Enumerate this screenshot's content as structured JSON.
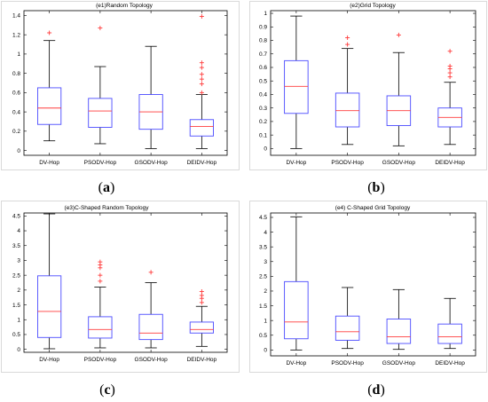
{
  "colors": {
    "box": "#4b4bff",
    "median": "#ff3b3b",
    "whisker": "#000000",
    "outlier": "#ff3b3b"
  },
  "captions": [
    "(a)",
    "(b)",
    "(c)",
    "(d)"
  ],
  "chart_data": [
    {
      "type": "box",
      "title": "(e1)Random Topology",
      "ylim": [
        -0.05,
        1.45
      ],
      "yticks": [
        0,
        0.2,
        0.4,
        0.6,
        0.8,
        1,
        1.2,
        1.4
      ],
      "categories": [
        "DV-Hop",
        "PSODV-Hop",
        "GSODV-Hop",
        "DEIDV-Hop"
      ],
      "boxes": [
        {
          "min": 0.1,
          "q1": 0.27,
          "median": 0.44,
          "q3": 0.65,
          "max": 1.14,
          "outliers": [
            1.22
          ]
        },
        {
          "min": 0.07,
          "q1": 0.24,
          "median": 0.41,
          "q3": 0.54,
          "max": 0.87,
          "outliers": [
            1.27
          ]
        },
        {
          "min": 0.02,
          "q1": 0.22,
          "median": 0.4,
          "q3": 0.58,
          "max": 1.08,
          "outliers": []
        },
        {
          "min": 0.02,
          "q1": 0.15,
          "median": 0.25,
          "q3": 0.32,
          "max": 0.58,
          "outliers": [
            0.6,
            0.69,
            0.74,
            0.79,
            0.86,
            0.91,
            1.39
          ]
        }
      ]
    },
    {
      "type": "box",
      "title": "(e2)Grid Topology",
      "ylim": [
        -0.05,
        1.02
      ],
      "yticks": [
        0,
        0.1,
        0.2,
        0.3,
        0.4,
        0.5,
        0.6,
        0.7,
        0.8,
        0.9,
        1
      ],
      "categories": [
        "DV-Hop",
        "PSODV-Hop",
        "GSODV-Hop",
        "DEIDV-Hop"
      ],
      "boxes": [
        {
          "min": 0.0,
          "q1": 0.26,
          "median": 0.46,
          "q3": 0.65,
          "max": 0.98,
          "outliers": []
        },
        {
          "min": 0.03,
          "q1": 0.16,
          "median": 0.28,
          "q3": 0.41,
          "max": 0.74,
          "outliers": [
            0.77,
            0.82
          ]
        },
        {
          "min": 0.02,
          "q1": 0.17,
          "median": 0.28,
          "q3": 0.39,
          "max": 0.71,
          "outliers": [
            0.84
          ]
        },
        {
          "min": 0.03,
          "q1": 0.16,
          "median": 0.23,
          "q3": 0.3,
          "max": 0.49,
          "outliers": [
            0.53,
            0.56,
            0.59,
            0.61,
            0.72
          ]
        }
      ]
    },
    {
      "type": "box",
      "title": "(e3)C-Shaped Random Topology",
      "ylim": [
        -0.1,
        4.6
      ],
      "yticks": [
        0,
        0.5,
        1,
        1.5,
        2,
        2.5,
        3,
        3.5,
        4,
        4.5
      ],
      "categories": [
        "DV-Hop",
        "PSODV-Hop",
        "GSODV-Hop",
        "DEIDV-Hop"
      ],
      "boxes": [
        {
          "min": 0.02,
          "q1": 0.4,
          "median": 1.28,
          "q3": 2.48,
          "max": 4.57,
          "outliers": []
        },
        {
          "min": 0.05,
          "q1": 0.38,
          "median": 0.67,
          "q3": 1.1,
          "max": 2.1,
          "outliers": [
            2.3,
            2.5,
            2.75,
            2.85,
            2.95
          ]
        },
        {
          "min": 0.05,
          "q1": 0.33,
          "median": 0.55,
          "q3": 1.18,
          "max": 2.25,
          "outliers": [
            2.6
          ]
        },
        {
          "min": 0.1,
          "q1": 0.55,
          "median": 0.67,
          "q3": 0.92,
          "max": 1.45,
          "outliers": [
            1.58,
            1.72,
            1.82,
            1.95
          ]
        }
      ]
    },
    {
      "type": "box",
      "title": "(e4) C-Shaped Grid Topology",
      "ylim": [
        -0.2,
        4.65
      ],
      "yticks": [
        0,
        0.5,
        1,
        1.5,
        2,
        2.5,
        3,
        3.5,
        4,
        4.5
      ],
      "categories": [
        "DV-Hop",
        "PSODV-Hop",
        "GSODV-Hop",
        "DEIDV-Hop"
      ],
      "boxes": [
        {
          "min": 0.0,
          "q1": 0.38,
          "median": 0.95,
          "q3": 2.32,
          "max": 4.52,
          "outliers": []
        },
        {
          "min": 0.05,
          "q1": 0.33,
          "median": 0.62,
          "q3": 1.15,
          "max": 2.12,
          "outliers": []
        },
        {
          "min": 0.02,
          "q1": 0.22,
          "median": 0.45,
          "q3": 1.05,
          "max": 2.05,
          "outliers": []
        },
        {
          "min": 0.05,
          "q1": 0.22,
          "median": 0.45,
          "q3": 0.88,
          "max": 1.75,
          "outliers": []
        }
      ]
    }
  ]
}
